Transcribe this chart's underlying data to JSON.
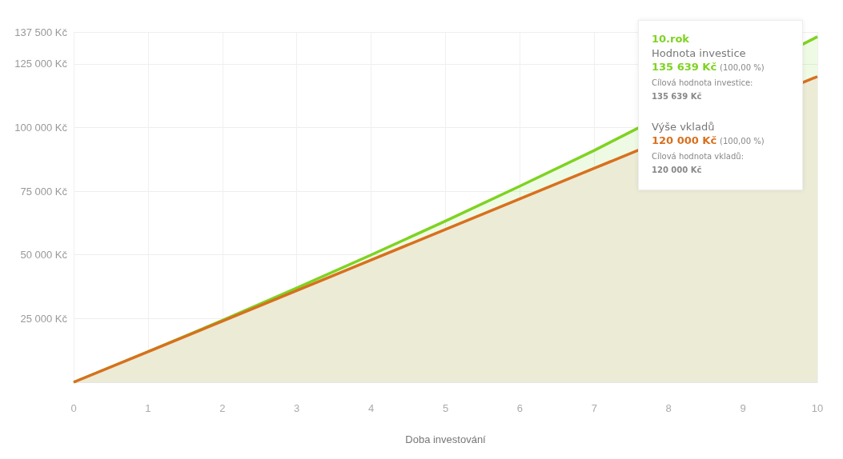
{
  "chart_data": {
    "type": "area",
    "xlabel": "Doba investování",
    "x": [
      0,
      1,
      2,
      3,
      4,
      5,
      6,
      7,
      8,
      9,
      10
    ],
    "series": [
      {
        "color": "#7ed321",
        "values": [
          0,
          12000,
          24300,
          37000,
          50000,
          63300,
          77000,
          91000,
          null,
          null,
          135639
        ]
      },
      {
        "color": "#d8701e",
        "values": [
          0,
          12000,
          24000,
          36000,
          48000,
          60000,
          72000,
          84000,
          null,
          null,
          120000
        ]
      }
    ],
    "xlim": [
      0,
      10
    ],
    "xticks": [
      0,
      1,
      2,
      3,
      4,
      5,
      6,
      7,
      8,
      9,
      10
    ],
    "ylim": [
      0,
      137500
    ],
    "yticks": [
      {
        "value": 0,
        "label": null
      },
      {
        "value": 25000,
        "label": "25 000 Kč"
      },
      {
        "value": 50000,
        "label": "50 000 Kč"
      },
      {
        "value": 75000,
        "label": "75 000 Kč"
      },
      {
        "value": 100000,
        "label": "100 000 Kč"
      },
      {
        "value": 125000,
        "label": "125 000 Kč"
      },
      {
        "value": 137500,
        "label": "137 500 Kč"
      }
    ],
    "grid": true,
    "marker": "none",
    "annotations": [
      "10.rok",
      "Hodnota investice",
      "135 639 Kč",
      "(100,00 %)",
      "Cílová hodnota investice:",
      "135 639 Kč",
      "Výše vkladů",
      "120 000 Kč",
      "(100,00 %)",
      "Cílová hodnota vkladů:",
      "120 000 Kč"
    ]
  }
}
